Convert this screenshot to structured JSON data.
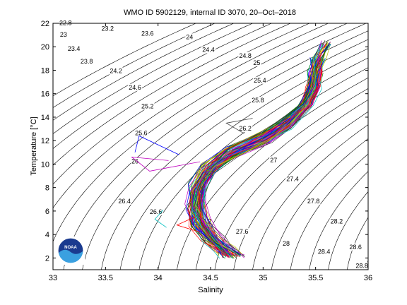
{
  "chart_data": {
    "type": "line",
    "title": "WMO ID 5902129, internal ID 3070, 20–Oct–2018",
    "xlabel": "Salinity",
    "ylabel": "Temperature [°C]",
    "xlim": [
      33,
      36
    ],
    "ylim": [
      1,
      22
    ],
    "x_ticks": [
      "33",
      "33.5",
      "34",
      "34.5",
      "35",
      "35.5",
      "36"
    ],
    "y_ticks": [
      "2",
      "4",
      "6",
      "8",
      "10",
      "12",
      "14",
      "16",
      "18",
      "20",
      "22"
    ],
    "grid": false,
    "contour_labels": [
      {
        "text": "22.8",
        "s": 33.12,
        "t": 22.0
      },
      {
        "text": "23",
        "s": 33.1,
        "t": 21.0
      },
      {
        "text": "23.2",
        "s": 33.52,
        "t": 21.5
      },
      {
        "text": "23.4",
        "s": 33.2,
        "t": 19.8
      },
      {
        "text": "23.6",
        "s": 33.9,
        "t": 21.1
      },
      {
        "text": "23.8",
        "s": 33.32,
        "t": 18.7
      },
      {
        "text": "24",
        "s": 34.3,
        "t": 20.8
      },
      {
        "text": "24.2",
        "s": 33.6,
        "t": 17.9
      },
      {
        "text": "24.4",
        "s": 34.48,
        "t": 19.7
      },
      {
        "text": "24.6",
        "s": 33.78,
        "t": 16.5
      },
      {
        "text": "24.8",
        "s": 34.83,
        "t": 19.2
      },
      {
        "text": "25",
        "s": 34.94,
        "t": 18.6
      },
      {
        "text": "25.2",
        "s": 33.9,
        "t": 14.9
      },
      {
        "text": "25.4",
        "s": 34.97,
        "t": 17.1
      },
      {
        "text": "25.6",
        "s": 33.84,
        "t": 12.6
      },
      {
        "text": "25.8",
        "s": 34.95,
        "t": 15.4
      },
      {
        "text": "26",
        "s": 33.78,
        "t": 10.2
      },
      {
        "text": "26.2",
        "s": 34.83,
        "t": 13.0
      },
      {
        "text": "26.4",
        "s": 33.68,
        "t": 6.8
      },
      {
        "text": "26.6",
        "s": 33.98,
        "t": 5.9
      },
      {
        "text": "27",
        "s": 35.1,
        "t": 10.3
      },
      {
        "text": "27.2",
        "s": 34.45,
        "t": 5.1
      },
      {
        "text": "27.4",
        "s": 35.28,
        "t": 8.7
      },
      {
        "text": "27.6",
        "s": 34.8,
        "t": 4.2
      },
      {
        "text": "27.8",
        "s": 35.48,
        "t": 6.8
      },
      {
        "text": "28",
        "s": 35.22,
        "t": 3.2
      },
      {
        "text": "28.2",
        "s": 35.7,
        "t": 5.1
      },
      {
        "text": "28.4",
        "s": 35.58,
        "t": 2.5
      },
      {
        "text": "28.6",
        "s": 35.88,
        "t": 2.9
      },
      {
        "text": "28.8",
        "s": 35.94,
        "t": 1.3
      }
    ],
    "contour_offsets_s": [
      -2.52,
      -2.34,
      -2.16,
      -1.98,
      -1.8,
      -1.62,
      -1.44,
      -1.26,
      -1.08,
      -0.9,
      -0.72,
      -0.54,
      -0.36,
      -0.18,
      0.0,
      0.18,
      0.36,
      0.54,
      0.72,
      0.9,
      1.08,
      1.26,
      1.44,
      1.62,
      1.8,
      1.98,
      2.16,
      2.34
    ],
    "profile_core": [
      {
        "s": 34.7,
        "t": 2.2
      },
      {
        "s": 34.62,
        "t": 2.8
      },
      {
        "s": 34.52,
        "t": 3.6
      },
      {
        "s": 34.4,
        "t": 5.0
      },
      {
        "s": 34.36,
        "t": 6.5
      },
      {
        "s": 34.38,
        "t": 8.0
      },
      {
        "s": 34.48,
        "t": 9.6
      },
      {
        "s": 34.7,
        "t": 11.0
      },
      {
        "s": 35.0,
        "t": 12.2
      },
      {
        "s": 35.22,
        "t": 13.5
      },
      {
        "s": 35.4,
        "t": 15.0
      },
      {
        "s": 35.48,
        "t": 16.5
      },
      {
        "s": 35.5,
        "t": 17.8
      },
      {
        "s": 35.52,
        "t": 19.0
      },
      {
        "s": 35.6,
        "t": 20.3
      }
    ],
    "profile_count": 90,
    "series_colors": [
      "#0000ff",
      "#008000",
      "#ff0000",
      "#00bfbf",
      "#bf00bf",
      "#bfbf00",
      "#404040"
    ],
    "logo": {
      "text": "NOAA",
      "primary": "#1a3a8f",
      "secondary": "#3aa0e0"
    }
  }
}
